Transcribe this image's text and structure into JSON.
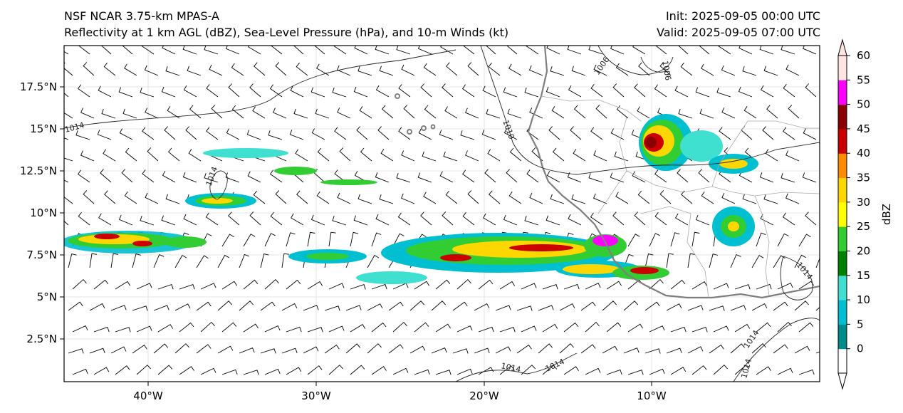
{
  "header": {
    "title_line1": "NSF NCAR 3.75-km MPAS-A",
    "title_line2": "Reflectivity at 1 km AGL (dBZ), Sea-Level Pressure (hPa), and 10-m Winds (kt)",
    "init": "Init: 2025-09-05 00:00 UTC",
    "valid": "Valid: 2025-09-05 07:00 UTC"
  },
  "map": {
    "lon_range": [
      -45,
      0
    ],
    "lat_range": [
      0,
      20
    ],
    "lat_ticks": [
      "2.5°N",
      "5°N",
      "7.5°N",
      "10°N",
      "12.5°N",
      "15°N",
      "17.5°N"
    ],
    "lon_ticks": [
      "40°W",
      "30°W",
      "20°W",
      "10°W"
    ],
    "contour_labels": [
      "1014",
      "1014",
      "1010",
      "1006",
      "1006",
      "1014",
      "1014",
      "1014",
      "1014",
      "1014"
    ]
  },
  "colorbar": {
    "label": "dBZ",
    "ticks": [
      "0",
      "5",
      "10",
      "15",
      "20",
      "25",
      "30",
      "35",
      "40",
      "45",
      "50",
      "55",
      "60"
    ],
    "colors": [
      "#008b8b",
      "#00bfd0",
      "#40e0d0",
      "#008000",
      "#32cd32",
      "#ffff00",
      "#ffd700",
      "#ff8c00",
      "#cc0000",
      "#8b0000",
      "#ff00ff",
      "#ffe4e1"
    ]
  }
}
